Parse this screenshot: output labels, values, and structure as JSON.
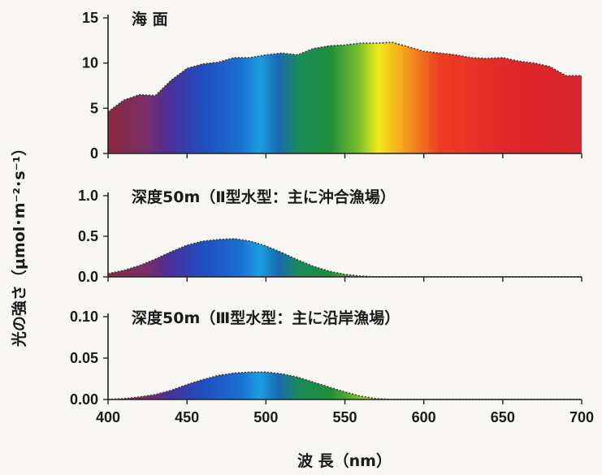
{
  "chart_data": [
    {
      "type": "area",
      "title": "海 面",
      "x": [
        400,
        410,
        420,
        430,
        440,
        450,
        460,
        470,
        480,
        490,
        500,
        510,
        520,
        530,
        540,
        550,
        560,
        570,
        580,
        590,
        600,
        610,
        620,
        630,
        640,
        650,
        660,
        670,
        680,
        690,
        700
      ],
      "values": [
        4.6,
        5.9,
        6.5,
        6.4,
        8.1,
        9.4,
        9.9,
        10.1,
        10.6,
        10.6,
        10.9,
        11.1,
        10.9,
        11.6,
        11.9,
        12.0,
        12.2,
        12.2,
        12.3,
        11.8,
        11.3,
        11.1,
        10.9,
        10.6,
        10.5,
        10.6,
        10.2,
        10.0,
        9.6,
        8.6,
        8.6
      ],
      "ylim": [
        0,
        15
      ],
      "yticks": [
        "0",
        "5",
        "10",
        "15"
      ],
      "xlim": [
        400,
        700
      ]
    },
    {
      "type": "area",
      "title": "深度50m（Ⅱ型水型：主に沖合漁場）",
      "x": [
        400,
        410,
        420,
        430,
        440,
        450,
        460,
        470,
        480,
        490,
        500,
        510,
        520,
        530,
        540,
        550,
        560,
        570,
        580,
        590,
        600,
        650,
        700
      ],
      "values": [
        0.04,
        0.08,
        0.14,
        0.22,
        0.31,
        0.39,
        0.44,
        0.46,
        0.47,
        0.44,
        0.38,
        0.3,
        0.21,
        0.13,
        0.07,
        0.03,
        0.01,
        0.0,
        0.0,
        0.0,
        0.0,
        0.0,
        0.0
      ],
      "ylim": [
        0,
        1.0
      ],
      "yticks": [
        "0.0",
        "0.5",
        "1.0"
      ],
      "xlim": [
        400,
        700
      ]
    },
    {
      "type": "area",
      "title": "深度50m（Ⅲ型水型：主に沿岸漁場）",
      "x": [
        400,
        410,
        420,
        430,
        440,
        450,
        460,
        470,
        480,
        490,
        500,
        510,
        520,
        530,
        540,
        550,
        560,
        570,
        580,
        590,
        600,
        650,
        700
      ],
      "values": [
        0.0,
        0.001,
        0.003,
        0.006,
        0.011,
        0.018,
        0.024,
        0.029,
        0.032,
        0.033,
        0.033,
        0.031,
        0.027,
        0.021,
        0.015,
        0.009,
        0.004,
        0.001,
        0.0,
        0.0,
        0.0,
        0.0,
        0.0
      ],
      "ylim": [
        0,
        0.1
      ],
      "yticks": [
        "0.00",
        "0.05",
        "0.10"
      ],
      "xlim": [
        400,
        700
      ]
    }
  ],
  "axes": {
    "xticks": [
      "400",
      "450",
      "500",
      "550",
      "600",
      "650",
      "700"
    ],
    "xlabel": "波 長（nm）",
    "ylabel": "光の強さ（μmol･m⁻²･s⁻¹）"
  },
  "colors": {
    "spectrum": [
      "#8b2a3c",
      "#7a2e6a",
      "#4a2f9a",
      "#1f4fbf",
      "#1a6fd0",
      "#1c9ee0",
      "#1a8a5a",
      "#1f8f3a",
      "#7abf2a",
      "#f2ea1a",
      "#f59a1e",
      "#ee3d22",
      "#e0262a",
      "#d7262c"
    ],
    "frame": "#222222",
    "curve": "#3a3a3a"
  }
}
